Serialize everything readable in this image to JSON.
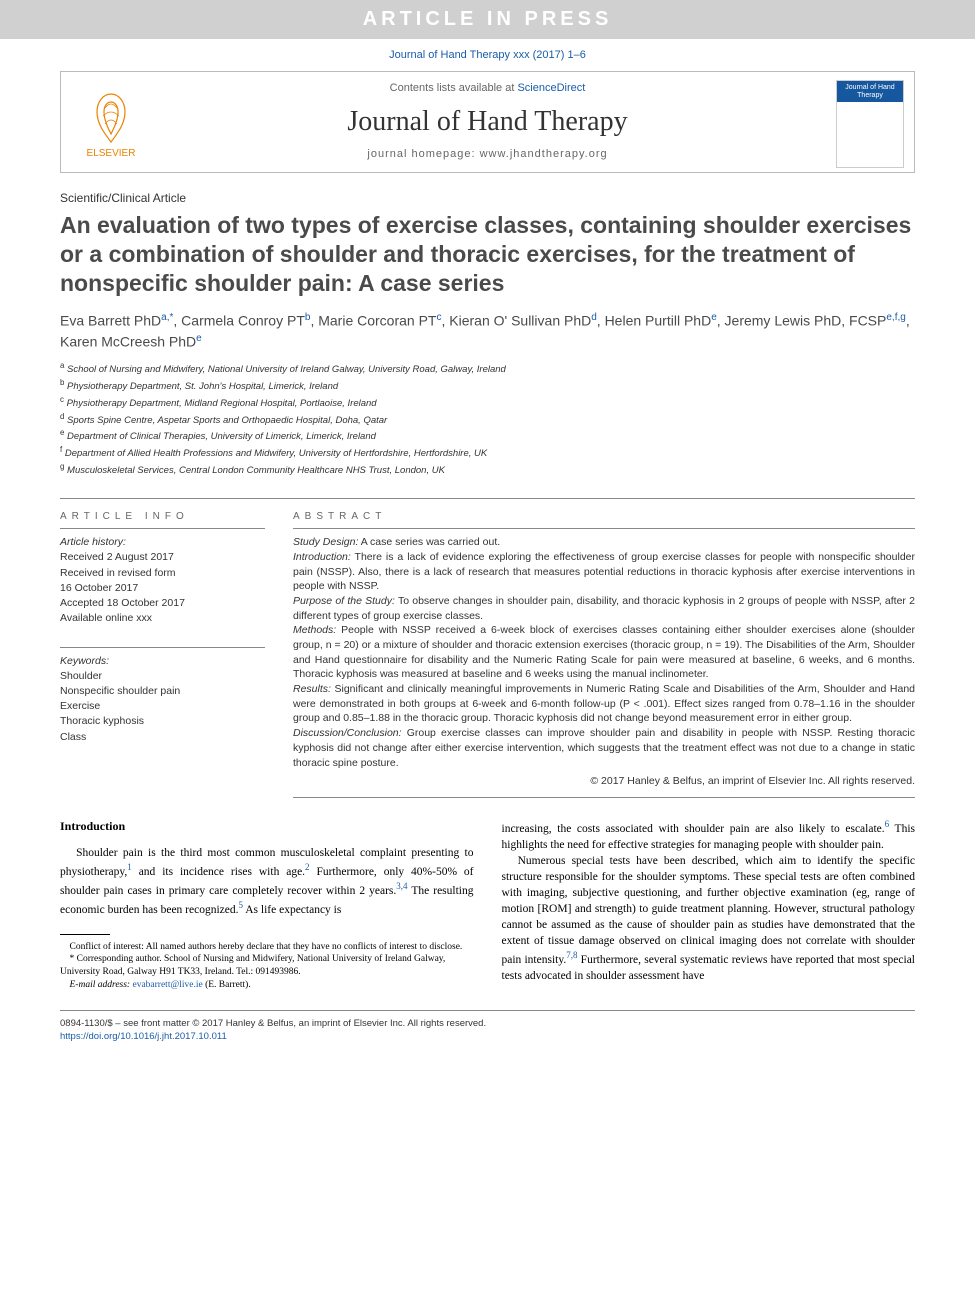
{
  "banner": "ARTICLE IN PRESS",
  "citation": "Journal of Hand Therapy xxx (2017) 1–6",
  "masthead": {
    "contents_prefix": "Contents lists available at ",
    "sciencedirect": "ScienceDirect",
    "journal_title": "Journal of Hand Therapy",
    "homepage_label": "journal homepage: ",
    "homepage_url": "www.jhandtherapy.org",
    "publisher_caption": "ELSEVIER",
    "cover_title": "Journal of Hand Therapy"
  },
  "article_type": "Scientific/Clinical Article",
  "title": "An evaluation of two types of exercise classes, containing shoulder exercises or a combination of shoulder and thoracic exercises, for the treatment of nonspecific shoulder pain: A case series",
  "authors_html": "Eva Barrett PhD<sup>a,*</sup>, Carmela Conroy PT<sup>b</sup>, Marie Corcoran PT<sup>c</sup>, Kieran O' Sullivan PhD<sup>d</sup>, Helen Purtill PhD<sup>e</sup>, Jeremy Lewis PhD, FCSP<sup>e,f,g</sup>, Karen McCreesh PhD<sup>e</sup>",
  "affiliations": [
    "a School of Nursing and Midwifery, National University of Ireland Galway, University Road, Galway, Ireland",
    "b Physiotherapy Department, St. John's Hospital, Limerick, Ireland",
    "c Physiotherapy Department, Midland Regional Hospital, Portlaoise, Ireland",
    "d Sports Spine Centre, Aspetar Sports and Orthopaedic Hospital, Doha, Qatar",
    "e Department of Clinical Therapies, University of Limerick, Limerick, Ireland",
    "f Department of Allied Health Professions and Midwifery, University of Hertfordshire, Hertfordshire, UK",
    "g Musculoskeletal Services, Central London Community Healthcare NHS Trust, London, UK"
  ],
  "article_info": {
    "head": "ARTICLE INFO",
    "history_label": "Article history:",
    "history": [
      "Received 2 August 2017",
      "Received in revised form",
      "16 October 2017",
      "Accepted 18 October 2017",
      "Available online xxx"
    ],
    "keywords_label": "Keywords:",
    "keywords": [
      "Shoulder",
      "Nonspecific shoulder pain",
      "Exercise",
      "Thoracic kyphosis",
      "Class"
    ]
  },
  "abstract": {
    "head": "ABSTRACT",
    "sections": [
      {
        "label": "Study Design:",
        "text": "A case series was carried out."
      },
      {
        "label": "Introduction:",
        "text": "There is a lack of evidence exploring the effectiveness of group exercise classes for people with nonspecific shoulder pain (NSSP). Also, there is a lack of research that measures potential reductions in thoracic kyphosis after exercise interventions in people with NSSP."
      },
      {
        "label": "Purpose of the Study:",
        "text": "To observe changes in shoulder pain, disability, and thoracic kyphosis in 2 groups of people with NSSP, after 2 different types of group exercise classes."
      },
      {
        "label": "Methods:",
        "text": "People with NSSP received a 6-week block of exercises classes containing either shoulder exercises alone (shoulder group, n = 20) or a mixture of shoulder and thoracic extension exercises (thoracic group, n = 19). The Disabilities of the Arm, Shoulder and Hand questionnaire for disability and the Numeric Rating Scale for pain were measured at baseline, 6 weeks, and 6 months. Thoracic kyphosis was measured at baseline and 6 weeks using the manual inclinometer."
      },
      {
        "label": "Results:",
        "text": "Significant and clinically meaningful improvements in Numeric Rating Scale and Disabilities of the Arm, Shoulder and Hand were demonstrated in both groups at 6-week and 6-month follow-up (P < .001). Effect sizes ranged from 0.78–1.16 in the shoulder group and 0.85–1.88 in the thoracic group. Thoracic kyphosis did not change beyond measurement error in either group."
      },
      {
        "label": "Discussion/Conclusion:",
        "text": "Group exercise classes can improve shoulder pain and disability in people with NSSP. Resting thoracic kyphosis did not change after either exercise intervention, which suggests that the treatment effect was not due to a change in static thoracic spine posture."
      }
    ],
    "copyright": "© 2017 Hanley & Belfus, an imprint of Elsevier Inc. All rights reserved."
  },
  "body": {
    "intro_head": "Introduction",
    "col1_html": "Shoulder pain is the third most common musculoskeletal complaint presenting to physiotherapy,<span class='refsup'>1</span> and its incidence rises with age.<span class='refsup'>2</span> Furthermore, only 40%-50% of shoulder pain cases in primary care completely recover within 2 years.<span class='refsup'>3,4</span> The resulting economic burden has been recognized.<span class='refsup'>5</span> As life expectancy is",
    "col2_p1_html": "increasing, the costs associated with shoulder pain are also likely to escalate.<span class='refsup'>6</span> This highlights the need for effective strategies for managing people with shoulder pain.",
    "col2_p2_html": "Numerous special tests have been described, which aim to identify the specific structure responsible for the shoulder symptoms. These special tests are often combined with imaging, subjective questioning, and further objective examination (eg, range of motion [ROM] and strength) to guide treatment planning. However, structural pathology cannot be assumed as the cause of shoulder pain as studies have demonstrated that the extent of tissue damage observed on clinical imaging does not correlate with shoulder pain intensity.<span class='refsup'>7,8</span> Furthermore, several systematic reviews have reported that most special tests advocated in shoulder assessment have"
  },
  "footnotes": {
    "conflict": "Conflict of interest: All named authors hereby declare that they have no conflicts of interest to disclose.",
    "corresponding": "* Corresponding author. School of Nursing and Midwifery, National University of Ireland Galway, University Road, Galway H91 TK33, Ireland. Tel.: 091493986.",
    "email_label": "E-mail address: ",
    "email": "evabarrett@live.ie",
    "email_suffix": " (E. Barrett)."
  },
  "pagefoot": {
    "line1": "0894-1130/$ – see front matter © 2017 Hanley & Belfus, an imprint of Elsevier Inc. All rights reserved.",
    "doi": "https://doi.org/10.1016/j.jht.2017.10.011"
  },
  "colors": {
    "banner_bg": "#d0d0d0",
    "link": "#1a5ca8",
    "elsevier_orange": "#e98300",
    "cover_blue": "#1658a0"
  }
}
